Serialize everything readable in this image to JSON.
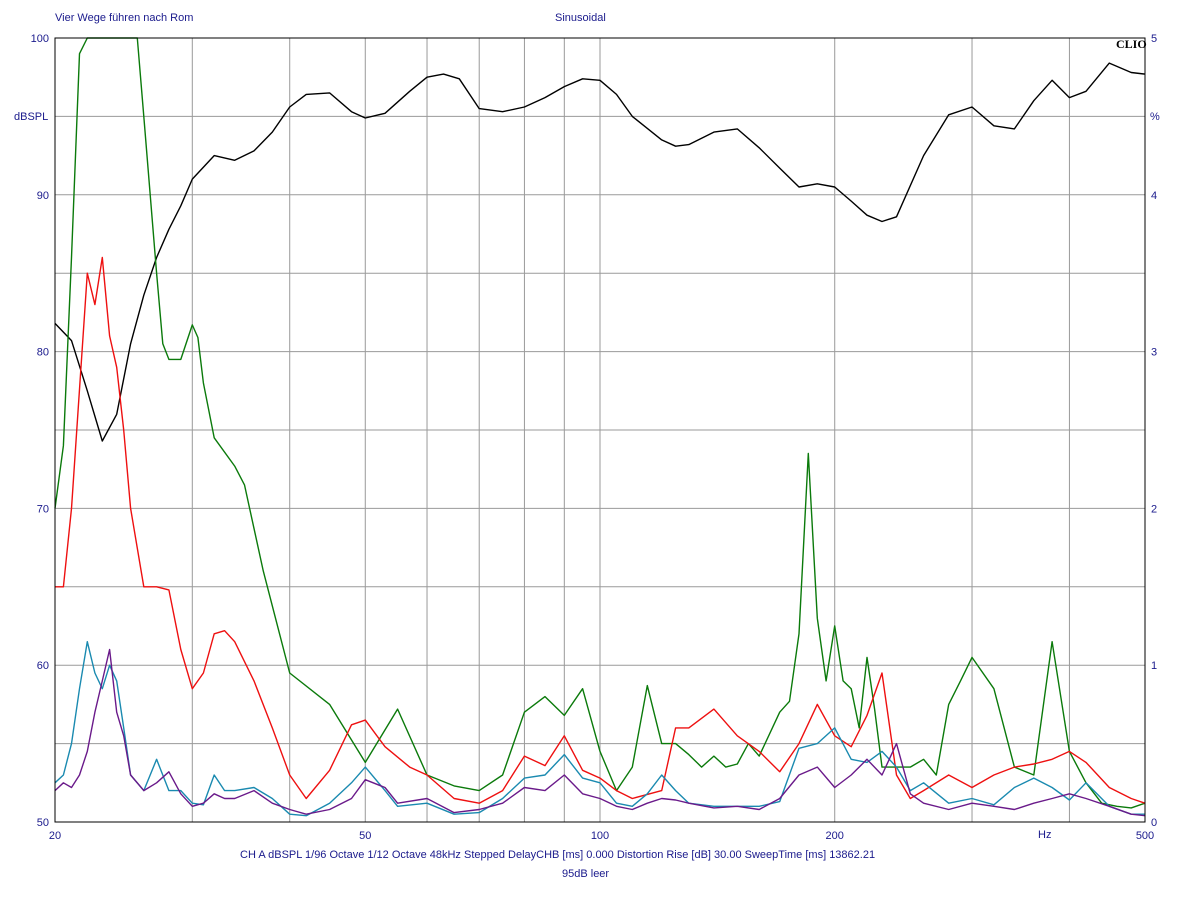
{
  "header": {
    "left_title": "Vier Wege führen nach Rom",
    "center_title": "Sinusoidal",
    "brand": "CLIO"
  },
  "footer": {
    "settings_line": "CH A   dBSPL   1/96 Octave   1/12 Octave   48kHz   Stepped    DelayCHB [ms] 0.000    Distortion Rise [dB] 30.00    SweepTime [ms] 13862.21",
    "caption": "95dB leer"
  },
  "chart_data": {
    "type": "line",
    "x_scale": "log",
    "xlim": [
      20,
      500
    ],
    "ylim": [
      50,
      100
    ],
    "y2lim": [
      0,
      5
    ],
    "xlabel": "Hz",
    "ylabel": "dBSPL",
    "y2label": "%",
    "grid": true,
    "x_tick_labels": [
      {
        "v": 20,
        "t": "20"
      },
      {
        "v": 50,
        "t": "50"
      },
      {
        "v": 100,
        "t": "100"
      },
      {
        "v": 200,
        "t": "200"
      },
      {
        "v": 500,
        "t": "500"
      }
    ],
    "y_tick_labels": [
      "100",
      "90",
      "80",
      "70",
      "60",
      "50"
    ],
    "y2_tick_labels": [
      "5",
      "4",
      "3",
      "2",
      "1",
      "0"
    ],
    "colors": {
      "grid": "#9a9a9a",
      "axis_text": "#1a1a8c",
      "black": "#000000",
      "green": "#0b7a0b",
      "red": "#ee1010",
      "cyan": "#1a8ab0",
      "purple": "#6a1a8a"
    },
    "series": [
      {
        "color_key": "black",
        "axis": "left",
        "x": [
          20,
          21,
          22,
          23,
          24,
          25,
          26,
          27,
          28,
          29,
          30,
          32,
          34,
          36,
          38,
          40,
          42,
          45,
          48,
          50,
          53,
          57,
          60,
          63,
          66,
          70,
          75,
          80,
          85,
          90,
          95,
          100,
          105,
          110,
          120,
          125,
          130,
          140,
          150,
          160,
          170,
          180,
          190,
          200,
          210,
          220,
          230,
          240,
          260,
          280,
          300,
          320,
          340,
          360,
          380,
          400,
          420,
          450,
          480,
          500
        ],
        "y": [
          81.8,
          80.7,
          77.5,
          74.3,
          76,
          80.5,
          83.6,
          86,
          87.8,
          89.3,
          91,
          92.5,
          92.2,
          92.8,
          94,
          95.6,
          96.4,
          96.5,
          95.3,
          94.9,
          95.2,
          96.6,
          97.5,
          97.7,
          97.4,
          95.5,
          95.3,
          95.6,
          96.2,
          96.9,
          97.4,
          97.3,
          96.4,
          95,
          93.5,
          93.1,
          93.2,
          94,
          94.2,
          93,
          91.7,
          90.5,
          90.7,
          90.5,
          89.6,
          88.7,
          88.3,
          88.6,
          92.5,
          95.1,
          95.6,
          94.4,
          94.2,
          96,
          97.3,
          96.2,
          96.6,
          98.4,
          97.8,
          97.7
        ]
      },
      {
        "color_key": "green",
        "axis": "right",
        "x": [
          20,
          20.5,
          21,
          21.5,
          22,
          22.5,
          23,
          24,
          25,
          25.5,
          26,
          27,
          27.5,
          28,
          29,
          30,
          30.5,
          31,
          32,
          34,
          35,
          37,
          40,
          45,
          50,
          55,
          60,
          65,
          70,
          75,
          80,
          85,
          90,
          95,
          100,
          105,
          110,
          115,
          120,
          125,
          130,
          135,
          140,
          145,
          150,
          155,
          160,
          170,
          175,
          180,
          185,
          190,
          195,
          200,
          205,
          210,
          215,
          220,
          225,
          230,
          240,
          250,
          260,
          270,
          280,
          290,
          300,
          320,
          340,
          360,
          380,
          400,
          420,
          440,
          460,
          480,
          500
        ],
        "y": [
          2.0,
          2.4,
          3.6,
          4.9,
          5,
          5,
          5,
          5,
          5,
          5,
          4.5,
          3.5,
          3.05,
          2.95,
          2.95,
          3.17,
          3.09,
          2.8,
          2.45,
          2.27,
          2.15,
          1.6,
          0.95,
          0.75,
          0.38,
          0.72,
          0.3,
          0.23,
          0.2,
          0.3,
          0.7,
          0.8,
          0.68,
          0.85,
          0.45,
          0.2,
          0.35,
          0.87,
          0.5,
          0.5,
          0.43,
          0.35,
          0.42,
          0.35,
          0.37,
          0.5,
          0.42,
          0.7,
          0.77,
          1.2,
          2.35,
          1.3,
          0.9,
          1.25,
          0.9,
          0.85,
          0.6,
          1.05,
          0.72,
          0.35,
          0.35,
          0.35,
          0.4,
          0.3,
          0.75,
          0.9,
          1.05,
          0.85,
          0.35,
          0.3,
          1.15,
          0.45,
          0.25,
          0.12,
          0.1,
          0.09,
          0.12
        ]
      },
      {
        "color_key": "red",
        "axis": "right",
        "x": [
          20,
          20.5,
          21,
          22,
          22.5,
          23,
          23.5,
          24,
          24.5,
          25,
          26,
          27,
          28,
          29,
          30,
          31,
          32,
          33,
          34,
          36,
          38,
          40,
          42,
          45,
          48,
          50,
          53,
          57,
          60,
          65,
          70,
          75,
          80,
          85,
          90,
          95,
          100,
          105,
          110,
          120,
          125,
          130,
          140,
          150,
          160,
          170,
          180,
          190,
          200,
          210,
          220,
          230,
          240,
          250,
          260,
          280,
          300,
          320,
          340,
          360,
          380,
          400,
          420,
          450,
          480,
          500
        ],
        "y": [
          1.5,
          1.5,
          2.0,
          3.5,
          3.3,
          3.6,
          3.1,
          2.9,
          2.5,
          2.0,
          1.5,
          1.5,
          1.48,
          1.1,
          0.85,
          0.95,
          1.2,
          1.22,
          1.15,
          0.9,
          0.6,
          0.3,
          0.15,
          0.33,
          0.62,
          0.65,
          0.48,
          0.35,
          0.3,
          0.15,
          0.12,
          0.2,
          0.42,
          0.36,
          0.55,
          0.33,
          0.28,
          0.2,
          0.15,
          0.2,
          0.6,
          0.6,
          0.72,
          0.55,
          0.45,
          0.32,
          0.5,
          0.75,
          0.55,
          0.48,
          0.68,
          0.95,
          0.3,
          0.15,
          0.2,
          0.3,
          0.22,
          0.3,
          0.35,
          0.37,
          0.4,
          0.45,
          0.38,
          0.22,
          0.15,
          0.12
        ]
      },
      {
        "color_key": "cyan",
        "axis": "right",
        "x": [
          20,
          20.5,
          21,
          21.5,
          22,
          22.5,
          23,
          23.5,
          24,
          24.5,
          25,
          26,
          27,
          28,
          29,
          30,
          31,
          32,
          33,
          34,
          36,
          38,
          40,
          42,
          45,
          48,
          50,
          53,
          55,
          60,
          65,
          70,
          75,
          80,
          85,
          90,
          95,
          100,
          105,
          110,
          115,
          120,
          125,
          130,
          140,
          150,
          160,
          170,
          180,
          190,
          200,
          210,
          220,
          230,
          240,
          250,
          260,
          280,
          300,
          320,
          340,
          360,
          380,
          400,
          420,
          450,
          480,
          500
        ],
        "y": [
          0.25,
          0.3,
          0.5,
          0.85,
          1.15,
          0.95,
          0.85,
          1.0,
          0.9,
          0.6,
          0.3,
          0.2,
          0.4,
          0.2,
          0.2,
          0.12,
          0.11,
          0.3,
          0.2,
          0.2,
          0.22,
          0.15,
          0.05,
          0.04,
          0.12,
          0.25,
          0.35,
          0.2,
          0.1,
          0.12,
          0.05,
          0.06,
          0.15,
          0.28,
          0.3,
          0.43,
          0.28,
          0.25,
          0.12,
          0.1,
          0.18,
          0.3,
          0.2,
          0.12,
          0.1,
          0.1,
          0.1,
          0.13,
          0.47,
          0.5,
          0.6,
          0.4,
          0.38,
          0.45,
          0.35,
          0.2,
          0.25,
          0.12,
          0.15,
          0.11,
          0.22,
          0.28,
          0.22,
          0.14,
          0.25,
          0.1,
          0.05,
          0.05
        ]
      },
      {
        "color_key": "purple",
        "axis": "right",
        "x": [
          20,
          20.5,
          21,
          21.5,
          22,
          22.5,
          23,
          23.5,
          24,
          24.5,
          25,
          26,
          27,
          28,
          29,
          30,
          31,
          32,
          33,
          34,
          36,
          38,
          40,
          42,
          45,
          48,
          50,
          53,
          55,
          60,
          65,
          70,
          75,
          80,
          85,
          90,
          95,
          100,
          105,
          110,
          115,
          120,
          125,
          130,
          140,
          150,
          160,
          170,
          180,
          190,
          200,
          210,
          220,
          230,
          240,
          250,
          260,
          280,
          300,
          320,
          340,
          360,
          380,
          400,
          420,
          450,
          480,
          500
        ],
        "y": [
          0.2,
          0.25,
          0.22,
          0.3,
          0.45,
          0.7,
          0.9,
          1.1,
          0.7,
          0.55,
          0.3,
          0.2,
          0.25,
          0.32,
          0.18,
          0.1,
          0.12,
          0.18,
          0.15,
          0.15,
          0.2,
          0.12,
          0.08,
          0.05,
          0.08,
          0.15,
          0.27,
          0.22,
          0.12,
          0.15,
          0.06,
          0.08,
          0.12,
          0.22,
          0.2,
          0.3,
          0.18,
          0.15,
          0.1,
          0.08,
          0.12,
          0.15,
          0.14,
          0.12,
          0.09,
          0.1,
          0.08,
          0.15,
          0.3,
          0.35,
          0.22,
          0.3,
          0.4,
          0.3,
          0.5,
          0.18,
          0.12,
          0.08,
          0.12,
          0.1,
          0.08,
          0.12,
          0.15,
          0.18,
          0.15,
          0.1,
          0.05,
          0.04
        ]
      }
    ]
  }
}
